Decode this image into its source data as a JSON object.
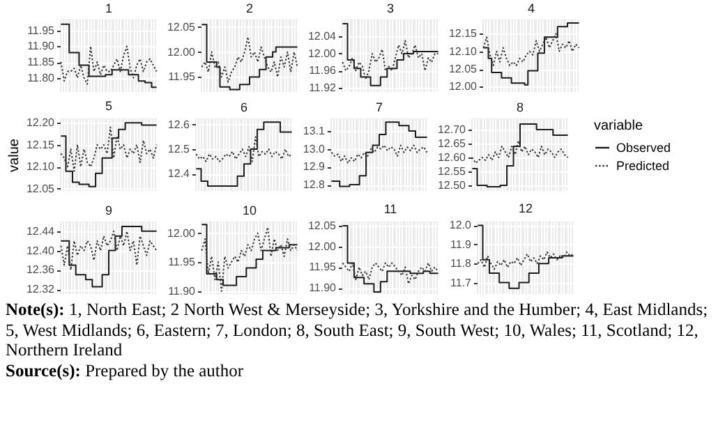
{
  "chart_data": [
    {
      "type": "line",
      "title": "1",
      "categories": [
        null,
        null,
        null,
        null,
        null,
        null,
        null,
        null,
        null,
        null,
        null,
        null,
        null,
        null,
        null,
        null,
        null,
        null,
        null,
        null,
        null,
        null,
        null,
        null,
        null,
        null,
        null,
        null,
        null,
        null
      ],
      "ylim": [
        11.755,
        11.985
      ],
      "yticks": [
        {
          "value": 11.8,
          "label": "11.80"
        },
        {
          "value": 11.85,
          "label": "11.85"
        },
        {
          "value": 11.9,
          "label": "11.90"
        },
        {
          "value": 11.95,
          "label": "11.95"
        }
      ],
      "grid": true,
      "tick_labels": "y",
      "series": [
        {
          "type": "step",
          "color": "#1a1a1a",
          "line_style": "solid",
          "values": [
            11.97,
            11.97,
            11.97,
            11.88,
            11.88,
            11.88,
            11.84,
            11.84,
            11.84,
            11.805,
            11.805,
            11.805,
            11.805,
            11.805,
            11.81,
            11.81,
            11.825,
            11.825,
            11.825,
            11.825,
            11.825,
            11.81,
            11.81,
            11.81,
            11.79,
            11.79,
            11.785,
            11.785,
            11.77,
            11.77
          ]
        },
        {
          "type": "line",
          "color": "#333333",
          "line_style": "dotted",
          "values": [
            11.85,
            11.79,
            11.82,
            11.82,
            11.83,
            11.8,
            11.84,
            11.8,
            11.78,
            11.9,
            11.82,
            11.85,
            11.81,
            11.84,
            11.82,
            11.82,
            11.84,
            11.86,
            11.82,
            11.87,
            11.9,
            11.83,
            11.8,
            11.84,
            11.86,
            11.82,
            11.85,
            11.86,
            11.84,
            11.82
          ]
        }
      ]
    },
    {
      "type": "line",
      "title": "2",
      "categories": [
        null,
        null,
        null,
        null,
        null,
        null,
        null,
        null,
        null,
        null,
        null,
        null,
        null,
        null,
        null,
        null,
        null,
        null,
        null,
        null,
        null,
        null,
        null,
        null,
        null,
        null,
        null,
        null,
        null,
        null
      ],
      "ylim": [
        11.92,
        12.065
      ],
      "yticks": [
        {
          "value": 11.95,
          "label": "11.95"
        },
        {
          "value": 12.0,
          "label": "12.00"
        },
        {
          "value": 12.05,
          "label": "12.05"
        }
      ],
      "grid": true,
      "tick_labels": "y",
      "series": [
        {
          "type": "step",
          "color": "#1a1a1a",
          "line_style": "solid",
          "values": [
            12.055,
            12.055,
            11.98,
            11.98,
            11.98,
            11.97,
            11.93,
            11.93,
            11.93,
            11.925,
            11.925,
            11.925,
            11.935,
            11.935,
            11.935,
            11.95,
            11.95,
            11.95,
            11.965,
            11.965,
            11.99,
            11.99,
            12.0,
            12.01,
            12.01,
            12.01,
            12.01,
            12.01,
            12.01,
            12.01
          ]
        },
        {
          "type": "line",
          "color": "#333333",
          "line_style": "dotted",
          "values": [
            11.97,
            11.98,
            11.96,
            12.0,
            11.97,
            11.98,
            11.95,
            11.97,
            11.94,
            11.96,
            11.97,
            11.99,
            11.98,
            12.0,
            12.03,
            11.99,
            12.0,
            11.98,
            12.01,
            11.99,
            11.97,
            11.96,
            11.98,
            11.95,
            11.99,
            11.97,
            12.0,
            11.96,
            12.0,
            11.97
          ]
        }
      ]
    },
    {
      "type": "line",
      "title": "3",
      "categories": [
        null,
        null,
        null,
        null,
        null,
        null,
        null,
        null,
        null,
        null,
        null,
        null,
        null,
        null,
        null,
        null,
        null,
        null,
        null,
        null,
        null,
        null,
        null,
        null,
        null,
        null,
        null,
        null,
        null,
        null
      ],
      "ylim": [
        11.91,
        12.08
      ],
      "yticks": [
        {
          "value": 11.92,
          "label": "11.92"
        },
        {
          "value": 11.96,
          "label": "11.96"
        },
        {
          "value": 12.0,
          "label": "12.00"
        },
        {
          "value": 12.04,
          "label": "12.04"
        }
      ],
      "grid": true,
      "tick_labels": "y",
      "series": [
        {
          "type": "step",
          "color": "#1a1a1a",
          "line_style": "solid",
          "values": [
            12.07,
            12.07,
            11.985,
            11.985,
            11.965,
            11.965,
            11.945,
            11.945,
            11.945,
            11.925,
            11.925,
            11.925,
            11.945,
            11.945,
            11.965,
            11.965,
            11.965,
            11.985,
            11.985,
            12.0,
            12.0,
            12.0,
            12.005,
            12.005,
            12.005,
            12.005,
            12.005,
            12.005,
            12.005,
            12.005
          ]
        },
        {
          "type": "line",
          "color": "#333333",
          "line_style": "dotted",
          "values": [
            11.98,
            11.96,
            11.97,
            11.99,
            11.96,
            11.98,
            11.97,
            11.94,
            11.96,
            12.0,
            11.98,
            11.99,
            12.01,
            11.96,
            11.97,
            11.96,
            11.99,
            12.02,
            12.0,
            12.03,
            11.99,
            12.0,
            12.02,
            11.99,
            12.0,
            11.96,
            11.99,
            11.98,
            12.0,
            12.0
          ]
        }
      ]
    },
    {
      "type": "line",
      "title": "4",
      "categories": [
        null,
        null,
        null,
        null,
        null,
        null,
        null,
        null,
        null,
        null,
        null,
        null,
        null,
        null,
        null,
        null,
        null,
        null,
        null,
        null,
        null,
        null,
        null,
        null,
        null,
        null,
        null,
        null,
        null,
        null
      ],
      "ylim": [
        11.985,
        12.19
      ],
      "yticks": [
        {
          "value": 12.0,
          "label": "12.00"
        },
        {
          "value": 12.05,
          "label": "12.05"
        },
        {
          "value": 12.1,
          "label": "12.10"
        },
        {
          "value": 12.15,
          "label": "12.15"
        }
      ],
      "grid": true,
      "tick_labels": "y",
      "series": [
        {
          "type": "step",
          "color": "#1a1a1a",
          "line_style": "solid",
          "values": [
            12.11,
            12.11,
            12.08,
            12.04,
            12.04,
            12.04,
            12.025,
            12.025,
            12.025,
            12.01,
            12.01,
            12.01,
            12.01,
            12.005,
            12.045,
            12.045,
            12.045,
            12.095,
            12.095,
            12.14,
            12.14,
            12.14,
            12.14,
            12.17,
            12.17,
            12.17,
            12.18,
            12.18,
            12.18,
            12.18
          ]
        },
        {
          "type": "line",
          "color": "#333333",
          "line_style": "dotted",
          "values": [
            12.11,
            12.14,
            12.09,
            12.06,
            12.1,
            12.07,
            12.11,
            12.08,
            12.06,
            12.07,
            12.06,
            12.08,
            12.07,
            12.09,
            12.1,
            12.09,
            12.13,
            12.1,
            12.12,
            12.14,
            12.11,
            12.13,
            12.15,
            12.1,
            12.12,
            12.11,
            12.13,
            12.1,
            12.12,
            12.11
          ]
        }
      ]
    },
    {
      "type": "line",
      "title": "5",
      "ylabel": "value",
      "categories": [
        null,
        null,
        null,
        null,
        null,
        null,
        null,
        null,
        null,
        null,
        null,
        null,
        null,
        null,
        null,
        null,
        null,
        null,
        null,
        null,
        null,
        null,
        null,
        null,
        null,
        null,
        null,
        null,
        null,
        null
      ],
      "ylim": [
        12.045,
        12.21
      ],
      "yticks": [
        {
          "value": 12.05,
          "label": "12.05"
        },
        {
          "value": 12.1,
          "label": "12.10"
        },
        {
          "value": 12.15,
          "label": "12.15"
        },
        {
          "value": 12.2,
          "label": "12.20"
        }
      ],
      "grid": true,
      "tick_labels": "y",
      "series": [
        {
          "type": "step",
          "color": "#1a1a1a",
          "line_style": "solid",
          "values": [
            12.17,
            12.17,
            12.09,
            12.09,
            12.065,
            12.065,
            12.06,
            12.06,
            12.06,
            12.055,
            12.055,
            12.085,
            12.085,
            12.12,
            12.12,
            12.12,
            12.165,
            12.165,
            12.185,
            12.185,
            12.2,
            12.2,
            12.2,
            12.2,
            12.2,
            12.195,
            12.195,
            12.195,
            12.195,
            12.195
          ]
        },
        {
          "type": "line",
          "color": "#333333",
          "line_style": "dotted",
          "values": [
            12.13,
            12.12,
            12.1,
            12.14,
            12.09,
            12.15,
            12.1,
            12.14,
            12.11,
            12.1,
            12.12,
            12.15,
            12.14,
            12.15,
            12.13,
            12.19,
            12.12,
            12.17,
            12.14,
            12.15,
            12.12,
            12.14,
            12.13,
            12.15,
            12.11,
            12.16,
            12.13,
            12.14,
            12.12,
            12.15
          ]
        }
      ]
    },
    {
      "type": "line",
      "title": "6",
      "categories": [
        null,
        null,
        null,
        null,
        null,
        null,
        null,
        null,
        null,
        null,
        null,
        null,
        null,
        null,
        null,
        null,
        null,
        null,
        null,
        null,
        null,
        null,
        null,
        null,
        null,
        null,
        null,
        null,
        null,
        null
      ],
      "ylim": [
        12.33,
        12.625
      ],
      "yticks": [
        {
          "value": 12.4,
          "label": "12.4"
        },
        {
          "value": 12.5,
          "label": "12.5"
        },
        {
          "value": 12.6,
          "label": "12.6"
        }
      ],
      "grid": true,
      "tick_labels": "y",
      "series": [
        {
          "type": "step",
          "color": "#1a1a1a",
          "line_style": "solid",
          "values": [
            12.42,
            12.42,
            12.37,
            12.37,
            12.35,
            12.35,
            12.35,
            12.35,
            12.35,
            12.35,
            12.35,
            12.35,
            12.35,
            12.39,
            12.39,
            12.44,
            12.44,
            12.5,
            12.5,
            12.58,
            12.58,
            12.61,
            12.61,
            12.61,
            12.61,
            12.61,
            12.57,
            12.57,
            12.57,
            12.57
          ]
        },
        {
          "type": "line",
          "color": "#333333",
          "line_style": "dotted",
          "values": [
            12.48,
            12.46,
            12.47,
            12.45,
            12.48,
            12.46,
            12.47,
            12.45,
            12.46,
            12.48,
            12.47,
            12.49,
            12.46,
            12.48,
            12.5,
            12.47,
            12.51,
            12.45,
            12.55,
            12.47,
            12.49,
            12.48,
            12.5,
            12.47,
            12.49,
            12.48,
            12.46,
            12.5,
            12.47,
            12.48
          ]
        }
      ]
    },
    {
      "type": "line",
      "title": "7",
      "categories": [
        null,
        null,
        null,
        null,
        null,
        null,
        null,
        null,
        null,
        null,
        null,
        null,
        null,
        null,
        null,
        null,
        null,
        null,
        null,
        null,
        null,
        null,
        null,
        null,
        null,
        null,
        null,
        null,
        null,
        null
      ],
      "ylim": [
        12.765,
        13.17
      ],
      "yticks": [
        {
          "value": 12.8,
          "label": "12.8"
        },
        {
          "value": 12.9,
          "label": "12.9"
        },
        {
          "value": 13.0,
          "label": "13.0"
        },
        {
          "value": 13.1,
          "label": "13.1"
        }
      ],
      "grid": true,
      "tick_labels": "y",
      "series": [
        {
          "type": "step",
          "color": "#1a1a1a",
          "line_style": "solid",
          "values": [
            12.82,
            12.82,
            12.82,
            12.79,
            12.79,
            12.79,
            12.8,
            12.8,
            12.8,
            12.85,
            12.85,
            12.98,
            12.98,
            13.02,
            13.02,
            13.08,
            13.08,
            13.15,
            13.15,
            13.15,
            13.15,
            13.13,
            13.13,
            13.13,
            13.1,
            13.1,
            13.065,
            13.065,
            13.065,
            13.065
          ]
        },
        {
          "type": "line",
          "color": "#333333",
          "line_style": "dotted",
          "values": [
            12.98,
            12.96,
            12.97,
            12.93,
            12.96,
            12.92,
            12.95,
            12.93,
            12.97,
            12.95,
            12.98,
            12.96,
            13.0,
            12.98,
            13.01,
            13.0,
            13.02,
            12.99,
            13.01,
            13.0,
            12.96,
            13.02,
            12.98,
            13.01,
            12.99,
            13.02,
            12.98,
            13.0,
            13.01,
            12.98
          ]
        }
      ]
    },
    {
      "type": "line",
      "title": "8",
      "legend": "right",
      "legend_title": "variable",
      "categories": [
        null,
        null,
        null,
        null,
        null,
        null,
        null,
        null,
        null,
        null,
        null,
        null,
        null,
        null,
        null,
        null,
        null,
        null,
        null,
        null,
        null,
        null,
        null,
        null,
        null,
        null,
        null,
        null,
        null,
        null
      ],
      "ylim": [
        12.48,
        12.74
      ],
      "yticks": [
        {
          "value": 12.5,
          "label": "12.50"
        },
        {
          "value": 12.55,
          "label": "12.55"
        },
        {
          "value": 12.6,
          "label": "12.60"
        },
        {
          "value": 12.65,
          "label": "12.65"
        },
        {
          "value": 12.7,
          "label": "12.70"
        }
      ],
      "grid": true,
      "tick_labels": "y",
      "series": [
        {
          "name": "Observed",
          "type": "step",
          "color": "#1a1a1a",
          "line_style": "solid",
          "values": [
            12.56,
            12.56,
            12.5,
            12.5,
            12.5,
            12.495,
            12.495,
            12.495,
            12.495,
            12.5,
            12.5,
            12.57,
            12.57,
            12.64,
            12.64,
            12.72,
            12.72,
            12.72,
            12.72,
            12.72,
            12.7,
            12.7,
            12.7,
            12.7,
            12.7,
            12.68,
            12.68,
            12.68,
            12.68,
            12.68
          ]
        },
        {
          "name": "Predicted",
          "type": "line",
          "color": "#333333",
          "line_style": "dotted",
          "values": [
            12.6,
            12.58,
            12.59,
            12.6,
            12.59,
            12.61,
            12.59,
            12.62,
            12.6,
            12.64,
            12.62,
            12.6,
            12.64,
            12.61,
            12.66,
            12.62,
            12.64,
            12.61,
            12.63,
            12.62,
            12.6,
            12.64,
            12.61,
            12.63,
            12.62,
            12.6,
            12.62,
            12.63,
            12.61,
            12.6
          ]
        }
      ]
    },
    {
      "type": "line",
      "title": "9",
      "categories": [
        null,
        null,
        null,
        null,
        null,
        null,
        null,
        null,
        null,
        null,
        null,
        null,
        null,
        null,
        null,
        null,
        null,
        null,
        null,
        null,
        null,
        null,
        null,
        null,
        null,
        null,
        null,
        null,
        null,
        null
      ],
      "ylim": [
        12.31,
        12.46
      ],
      "yticks": [
        {
          "value": 12.32,
          "label": "12.32"
        },
        {
          "value": 12.36,
          "label": "12.36"
        },
        {
          "value": 12.4,
          "label": "12.40"
        },
        {
          "value": 12.44,
          "label": "12.44"
        }
      ],
      "grid": true,
      "tick_labels": "y",
      "series": [
        {
          "type": "step",
          "color": "#1a1a1a",
          "line_style": "solid",
          "values": [
            12.42,
            12.42,
            12.42,
            12.37,
            12.37,
            12.35,
            12.35,
            12.35,
            12.34,
            12.34,
            12.325,
            12.325,
            12.325,
            12.35,
            12.35,
            12.4,
            12.4,
            12.43,
            12.43,
            12.45,
            12.45,
            12.45,
            12.45,
            12.45,
            12.45,
            12.44,
            12.44,
            12.44,
            12.44,
            12.44
          ]
        },
        {
          "type": "line",
          "color": "#333333",
          "line_style": "dotted",
          "values": [
            12.41,
            12.37,
            12.41,
            12.36,
            12.42,
            12.39,
            12.41,
            12.4,
            12.42,
            12.41,
            12.38,
            12.42,
            12.4,
            12.43,
            12.41,
            12.42,
            12.44,
            12.4,
            12.43,
            12.41,
            12.44,
            12.4,
            12.42,
            12.37,
            12.43,
            12.41,
            12.39,
            12.42,
            12.41,
            12.4
          ]
        }
      ]
    },
    {
      "type": "line",
      "title": "10",
      "categories": [
        null,
        null,
        null,
        null,
        null,
        null,
        null,
        null,
        null,
        null,
        null,
        null,
        null,
        null,
        null,
        null,
        null,
        null,
        null,
        null,
        null,
        null,
        null,
        null,
        null,
        null,
        null,
        null,
        null,
        null
      ],
      "ylim": [
        11.895,
        12.02
      ],
      "yticks": [
        {
          "value": 11.9,
          "label": "11.90"
        },
        {
          "value": 11.95,
          "label": "11.95"
        },
        {
          "value": 12.0,
          "label": "12.00"
        }
      ],
      "grid": true,
      "tick_labels": "y",
      "series": [
        {
          "type": "step",
          "color": "#1a1a1a",
          "line_style": "solid",
          "values": [
            12.015,
            12.015,
            11.93,
            11.93,
            11.93,
            11.92,
            11.92,
            11.91,
            11.91,
            11.91,
            11.91,
            11.925,
            11.925,
            11.925,
            11.94,
            11.94,
            11.94,
            11.955,
            11.955,
            11.97,
            11.97,
            11.97,
            11.97,
            11.975,
            11.975,
            11.975,
            11.975,
            11.98,
            11.98,
            11.98
          ]
        },
        {
          "type": "line",
          "color": "#333333",
          "line_style": "dotted",
          "values": [
            11.97,
            11.99,
            11.93,
            11.96,
            11.92,
            11.95,
            11.9,
            11.96,
            11.94,
            11.95,
            11.96,
            11.95,
            11.97,
            11.96,
            11.98,
            11.97,
            11.99,
            12.0,
            11.97,
            11.99,
            12.01,
            11.96,
            11.99,
            11.97,
            11.98,
            11.96,
            11.99,
            11.97,
            11.98,
            11.97
          ]
        }
      ]
    },
    {
      "type": "line",
      "title": "11",
      "categories": [
        null,
        null,
        null,
        null,
        null,
        null,
        null,
        null,
        null,
        null,
        null,
        null,
        null,
        null,
        null,
        null,
        null,
        null,
        null,
        null,
        null,
        null,
        null,
        null,
        null,
        null,
        null,
        null,
        null,
        null
      ],
      "ylim": [
        11.885,
        12.06
      ],
      "yticks": [
        {
          "value": 11.9,
          "label": "11.90"
        },
        {
          "value": 11.95,
          "label": "11.95"
        },
        {
          "value": 12.0,
          "label": "12.00"
        },
        {
          "value": 12.05,
          "label": "12.05"
        }
      ],
      "grid": true,
      "tick_labels": "y",
      "series": [
        {
          "type": "step",
          "color": "#1a1a1a",
          "line_style": "solid",
          "values": [
            12.05,
            12.05,
            11.96,
            11.96,
            11.925,
            11.925,
            11.925,
            11.91,
            11.91,
            11.91,
            11.89,
            11.89,
            11.915,
            11.915,
            11.94,
            11.94,
            11.94,
            11.94,
            11.94,
            11.94,
            11.94,
            11.935,
            11.935,
            11.935,
            11.935,
            11.94,
            11.94,
            11.935,
            11.935,
            11.935
          ]
        },
        {
          "type": "line",
          "color": "#333333",
          "line_style": "dotted",
          "values": [
            11.96,
            11.95,
            11.94,
            11.96,
            11.92,
            11.95,
            11.93,
            11.94,
            11.92,
            11.95,
            11.96,
            11.95,
            11.94,
            11.96,
            11.95,
            11.96,
            11.95,
            11.94,
            11.93,
            11.95,
            11.91,
            11.93,
            11.92,
            11.94,
            11.95,
            11.94,
            11.96,
            11.94,
            11.95,
            11.94
          ]
        }
      ]
    },
    {
      "type": "line",
      "title": "12",
      "categories": [
        null,
        null,
        null,
        null,
        null,
        null,
        null,
        null,
        null,
        null,
        null,
        null,
        null,
        null,
        null,
        null,
        null,
        null,
        null,
        null,
        null,
        null,
        null,
        null,
        null,
        null,
        null,
        null,
        null,
        null
      ],
      "ylim": [
        11.64,
        12.02
      ],
      "yticks": [
        {
          "value": 11.7,
          "label": "11.7"
        },
        {
          "value": 11.8,
          "label": "11.8"
        },
        {
          "value": 11.9,
          "label": "11.9"
        },
        {
          "value": 12.0,
          "label": "12.0"
        }
      ],
      "grid": true,
      "tick_labels": "y",
      "series": [
        {
          "type": "step",
          "color": "#1a1a1a",
          "line_style": "solid",
          "values": [
            12.0,
            12.0,
            11.82,
            11.82,
            11.75,
            11.75,
            11.75,
            11.7,
            11.7,
            11.7,
            11.67,
            11.67,
            11.67,
            11.7,
            11.7,
            11.7,
            11.75,
            11.75,
            11.75,
            11.8,
            11.8,
            11.8,
            11.83,
            11.83,
            11.83,
            11.83,
            11.84,
            11.84,
            11.84,
            11.84
          ]
        },
        {
          "type": "line",
          "color": "#333333",
          "line_style": "dotted",
          "values": [
            11.8,
            11.82,
            11.78,
            11.84,
            11.8,
            11.77,
            11.81,
            11.79,
            11.82,
            11.78,
            11.81,
            11.8,
            11.83,
            11.79,
            11.82,
            11.85,
            11.81,
            11.83,
            11.8,
            11.84,
            11.82,
            11.86,
            11.83,
            11.85,
            11.82,
            11.84,
            11.83,
            11.86,
            11.84,
            11.85
          ]
        }
      ],
      "annotations": [
        "Note(s): 1, North East; 2 North West & Merseyside; 3, Yorkshire and the Humber; 4, East Midlands; 5, West Midlands; 6, Eastern; 7, London; 8, South East; 9, South West; 10, Wales; 11, Scotland; 12, Northern Ireland",
        "Source(s): Prepared by the author"
      ]
    }
  ]
}
